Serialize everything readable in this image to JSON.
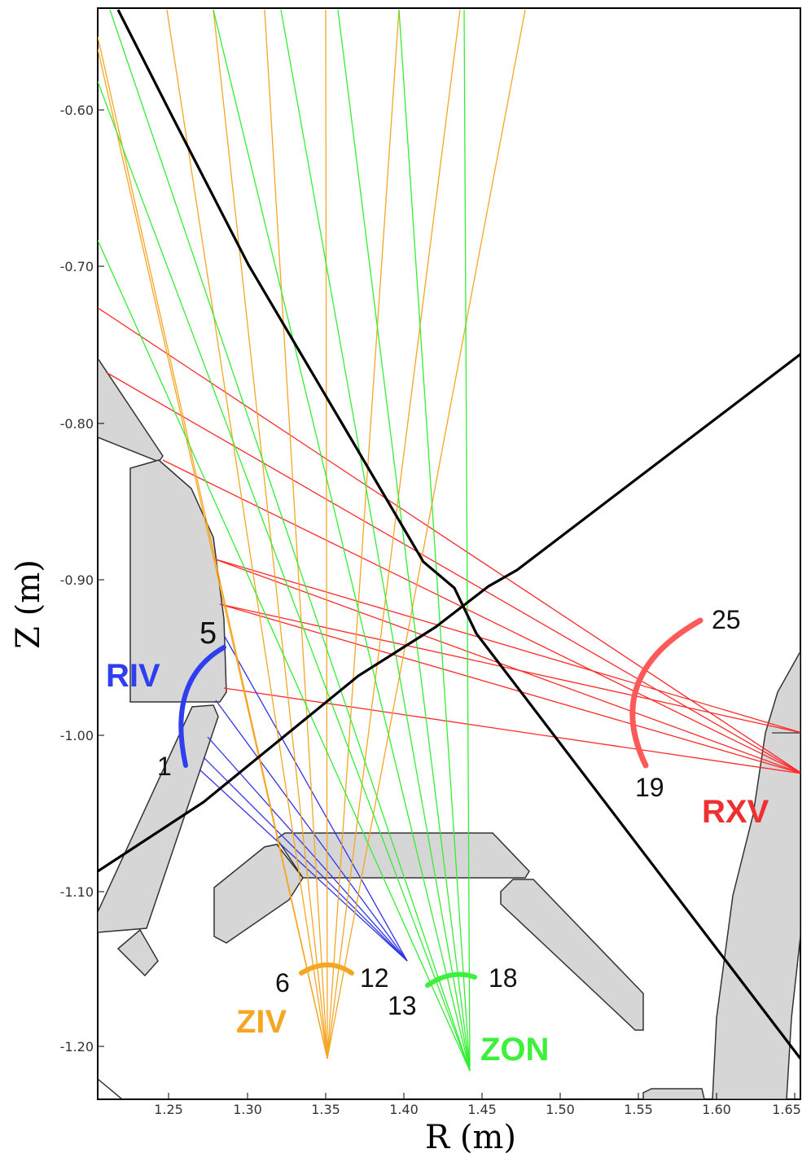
{
  "axes": {
    "x_title": "R (m)",
    "y_title": "Z (m)",
    "x_ticks": [
      "1.25",
      "1.30",
      "1.35",
      "1.40",
      "1.45",
      "1.50",
      "1.55",
      "1.60",
      "1.65"
    ],
    "y_ticks": [
      "-0.60",
      "-0.70",
      "-0.80",
      "-0.90",
      "-1.00",
      "-1.10",
      "-1.20"
    ]
  },
  "groups": {
    "riv": {
      "label": "RIV",
      "color": "#2f3ff0",
      "first": "1",
      "last": "5"
    },
    "ziv": {
      "label": "ZIV",
      "color": "#f5a623",
      "first": "6",
      "last": "12"
    },
    "zon": {
      "label": "ZON",
      "color": "#3cf03c",
      "first": "13",
      "last": "18"
    },
    "rxv": {
      "label": "RXV",
      "color": "#f03030",
      "first": "19",
      "last": "25"
    }
  },
  "colors": {
    "sightline_red": "#ff2a2a",
    "sightline_blue": "#2d34e8",
    "sightline_orange": "#f5a623",
    "sightline_green": "#33ee33",
    "rxv_arc": "#ff5a5a",
    "structure_fill": "#d6d6d6",
    "structure_stroke": "#333333",
    "separatrix": "#000000"
  }
}
